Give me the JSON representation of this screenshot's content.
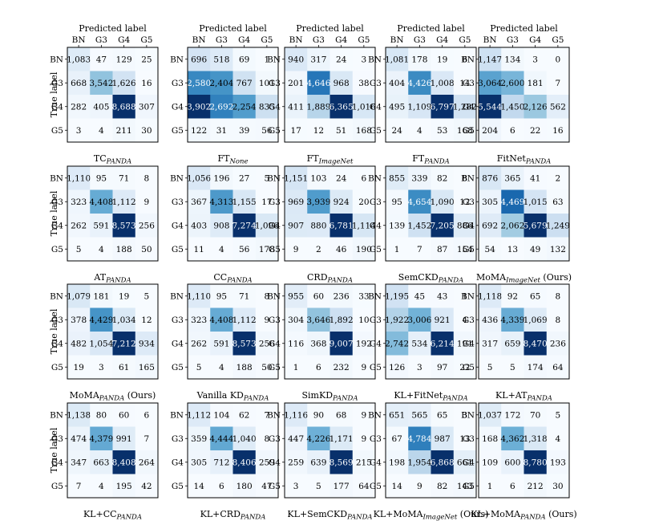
{
  "chart_data": {
    "type": "heatmap",
    "figure": "Grid of 4x5 confusion matrices",
    "row_labels": [
      "BN",
      "G3",
      "G4",
      "G5"
    ],
    "col_labels": [
      "BN",
      "G3",
      "G4",
      "G5"
    ],
    "x_title": "Predicted label",
    "y_title": "True label",
    "colormap": [
      "#f7fbff",
      "#deebf7",
      "#c6dbef",
      "#9ecae1",
      "#6baed6",
      "#4292c6",
      "#2171b5",
      "#08519c",
      "#08306b"
    ],
    "panels": [
      {
        "name": "TC",
        "sub": "PANDA",
        "suffix": "",
        "values": [
          [
            1083,
            47,
            129,
            25
          ],
          [
            668,
            3542,
            1626,
            16
          ],
          [
            282,
            405,
            8688,
            307
          ],
          [
            3,
            4,
            211,
            30
          ]
        ]
      },
      {
        "name": "FT",
        "sub": "None",
        "suffix": "",
        "values": [
          [
            696,
            518,
            69,
            1
          ],
          [
            2580,
            2404,
            767,
            101
          ],
          [
            3902,
            2692,
            2254,
            835
          ],
          [
            122,
            31,
            39,
            56
          ]
        ]
      },
      {
        "name": "FT",
        "sub": "ImageNet",
        "suffix": "",
        "values": [
          [
            940,
            317,
            24,
            3
          ],
          [
            201,
            4646,
            968,
            38
          ],
          [
            411,
            1889,
            6365,
            1016
          ],
          [
            17,
            12,
            51,
            168
          ]
        ]
      },
      {
        "name": "FT",
        "sub": "PANDA",
        "suffix": "",
        "values": [
          [
            1081,
            178,
            19,
            6
          ],
          [
            404,
            4426,
            1008,
            14
          ],
          [
            495,
            1109,
            6797,
            1282
          ],
          [
            24,
            4,
            53,
            168
          ]
        ]
      },
      {
        "name": "FitNet",
        "sub": "PANDA",
        "suffix": "",
        "values": [
          [
            1147,
            134,
            3,
            0
          ],
          [
            3064,
            2600,
            181,
            7
          ],
          [
            5544,
            1450,
            2126,
            562
          ],
          [
            204,
            6,
            22,
            16
          ]
        ]
      },
      {
        "name": "AT",
        "sub": "PANDA",
        "suffix": "",
        "values": [
          [
            1110,
            95,
            71,
            8
          ],
          [
            323,
            4408,
            1112,
            9
          ],
          [
            262,
            591,
            8573,
            256
          ],
          [
            5,
            4,
            188,
            50
          ]
        ]
      },
      {
        "name": "CC",
        "sub": "PANDA",
        "suffix": "",
        "values": [
          [
            1056,
            196,
            27,
            5
          ],
          [
            367,
            4313,
            1155,
            17
          ],
          [
            403,
            908,
            7274,
            1096
          ],
          [
            11,
            4,
            56,
            178
          ]
        ]
      },
      {
        "name": "CRD",
        "sub": "PANDA",
        "suffix": "",
        "values": [
          [
            1151,
            103,
            24,
            6
          ],
          [
            969,
            3939,
            924,
            20
          ],
          [
            907,
            880,
            6781,
            1114
          ],
          [
            9,
            2,
            46,
            190
          ]
        ]
      },
      {
        "name": "SemCKD",
        "sub": "PANDA",
        "suffix": "",
        "values": [
          [
            855,
            339,
            82,
            8
          ],
          [
            95,
            4654,
            1090,
            12
          ],
          [
            139,
            1452,
            7205,
            886
          ],
          [
            1,
            7,
            87,
            154
          ]
        ]
      },
      {
        "name": "MoMA",
        "sub": "ImageNet",
        "suffix": " (Ours)",
        "values": [
          [
            876,
            365,
            41,
            2
          ],
          [
            305,
            4469,
            1015,
            63
          ],
          [
            692,
            2062,
            5679,
            1249
          ],
          [
            54,
            13,
            49,
            132
          ]
        ]
      },
      {
        "name": "MoMA",
        "sub": "PANDA",
        "suffix": " (Ours)",
        "values": [
          [
            1079,
            181,
            19,
            5
          ],
          [
            378,
            4429,
            1034,
            12
          ],
          [
            482,
            1054,
            7212,
            934
          ],
          [
            19,
            3,
            61,
            165
          ]
        ]
      },
      {
        "name": "Vanilla KD",
        "sub": "PANDA",
        "suffix": "",
        "values": [
          [
            1110,
            95,
            71,
            8
          ],
          [
            323,
            4408,
            1112,
            9
          ],
          [
            262,
            591,
            8573,
            256
          ],
          [
            5,
            4,
            188,
            50
          ]
        ]
      },
      {
        "name": "SimKD",
        "sub": "PANDA",
        "suffix": "",
        "values": [
          [
            955,
            60,
            236,
            33
          ],
          [
            304,
            3646,
            1892,
            10
          ],
          [
            116,
            368,
            9007,
            192
          ],
          [
            1,
            6,
            232,
            9
          ]
        ]
      },
      {
        "name": "KL+FitNet",
        "sub": "PANDA",
        "suffix": "",
        "values": [
          [
            1195,
            45,
            43,
            1
          ],
          [
            1922,
            3006,
            921,
            4
          ],
          [
            2742,
            534,
            6214,
            191
          ],
          [
            126,
            3,
            97,
            22
          ]
        ]
      },
      {
        "name": "KL+AT",
        "sub": "PANDA",
        "suffix": "",
        "values": [
          [
            1118,
            92,
            65,
            8
          ],
          [
            436,
            4339,
            1069,
            8
          ],
          [
            317,
            659,
            8470,
            236
          ],
          [
            5,
            5,
            174,
            64
          ]
        ]
      },
      {
        "name": "KL+CC",
        "sub": "PANDA",
        "suffix": "",
        "values": [
          [
            1138,
            80,
            60,
            6
          ],
          [
            474,
            4379,
            991,
            7
          ],
          [
            347,
            663,
            8408,
            264
          ],
          [
            7,
            4,
            195,
            42
          ]
        ]
      },
      {
        "name": "KL+CRD",
        "sub": "PANDA",
        "suffix": "",
        "values": [
          [
            1112,
            104,
            62,
            7
          ],
          [
            359,
            4444,
            1040,
            8
          ],
          [
            305,
            712,
            8406,
            259
          ],
          [
            14,
            6,
            180,
            47
          ]
        ]
      },
      {
        "name": "KL+SemCKD",
        "sub": "PANDA",
        "suffix": "",
        "values": [
          [
            1116,
            90,
            68,
            9
          ],
          [
            447,
            4226,
            1171,
            9
          ],
          [
            259,
            639,
            8569,
            215
          ],
          [
            3,
            5,
            177,
            64
          ]
        ]
      },
      {
        "name": "KL+MoMA",
        "sub": "ImageNet",
        "suffix": " (Ours)",
        "values": [
          [
            651,
            565,
            65,
            3
          ],
          [
            67,
            4784,
            987,
            13
          ],
          [
            198,
            1954,
            6868,
            661
          ],
          [
            14,
            9,
            82,
            143
          ]
        ]
      },
      {
        "name": "KL+MoMA",
        "sub": "PANDA",
        "suffix": " (Ours)",
        "values": [
          [
            1037,
            172,
            70,
            5
          ],
          [
            168,
            4362,
            1318,
            4
          ],
          [
            109,
            600,
            8780,
            193
          ],
          [
            1,
            6,
            212,
            30
          ]
        ]
      }
    ]
  }
}
